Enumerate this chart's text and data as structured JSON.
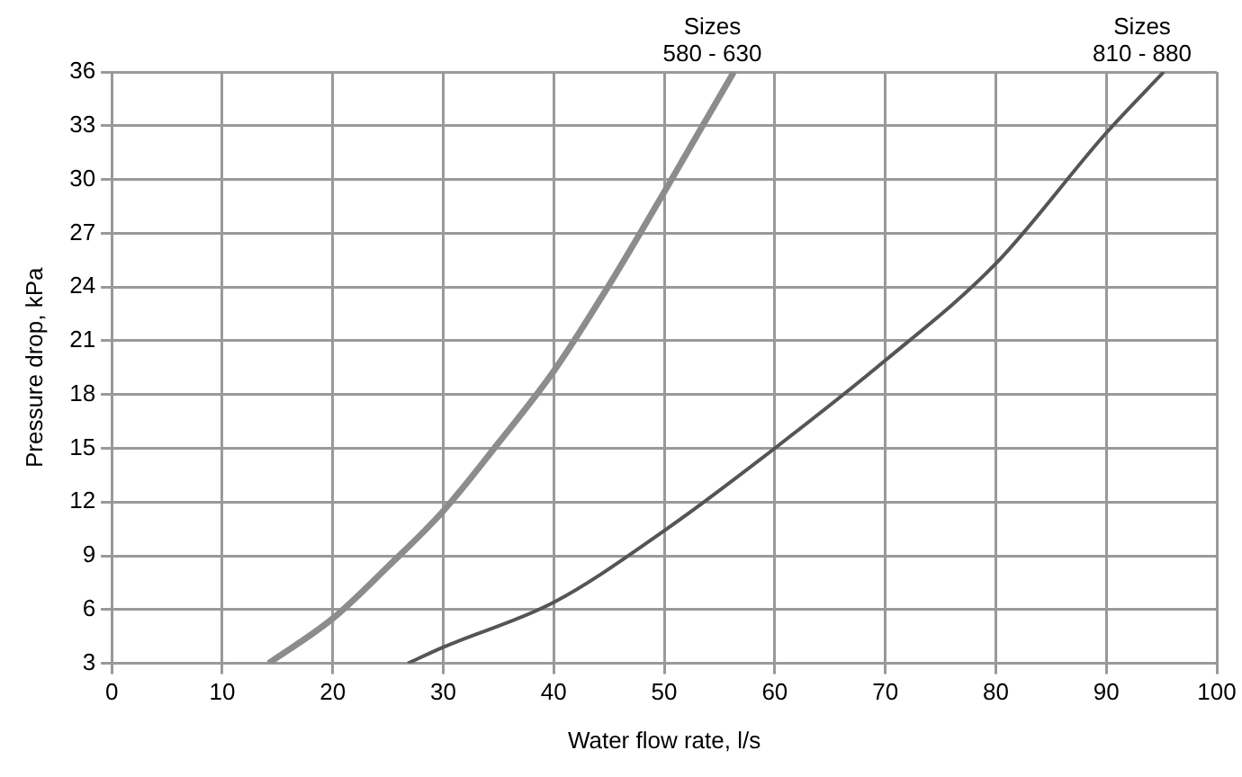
{
  "chart_data": {
    "type": "line",
    "xlabel": "Water flow rate, l/s",
    "ylabel": "Pressure drop, kPa",
    "xlim": [
      0,
      100
    ],
    "xticks": [
      0,
      10,
      20,
      30,
      40,
      50,
      60,
      70,
      80,
      90,
      100
    ],
    "ylim": [
      3,
      36
    ],
    "yticks": [
      3,
      6,
      9,
      12,
      15,
      18,
      21,
      24,
      27,
      30,
      33,
      36
    ],
    "grid": true,
    "legend": false,
    "marker": "none",
    "line_style": "solid",
    "series": [
      {
        "name": "Sizes 580 - 630",
        "color": "#8c8c8c",
        "x": [
          14.2,
          20,
          25,
          30,
          35,
          40,
          45,
          50,
          53,
          56.3
        ],
        "values": [
          3,
          5.5,
          8.4,
          11.5,
          15.3,
          19.3,
          24.1,
          29.3,
          32.5,
          36
        ]
      },
      {
        "name": "Sizes 810 - 880",
        "color": "#555555",
        "x": [
          26.8,
          30,
          40,
          50,
          60,
          70,
          80,
          90,
          95.2
        ],
        "values": [
          3,
          3.9,
          6.4,
          10.4,
          15,
          19.9,
          25.3,
          32.6,
          36
        ]
      }
    ]
  }
}
